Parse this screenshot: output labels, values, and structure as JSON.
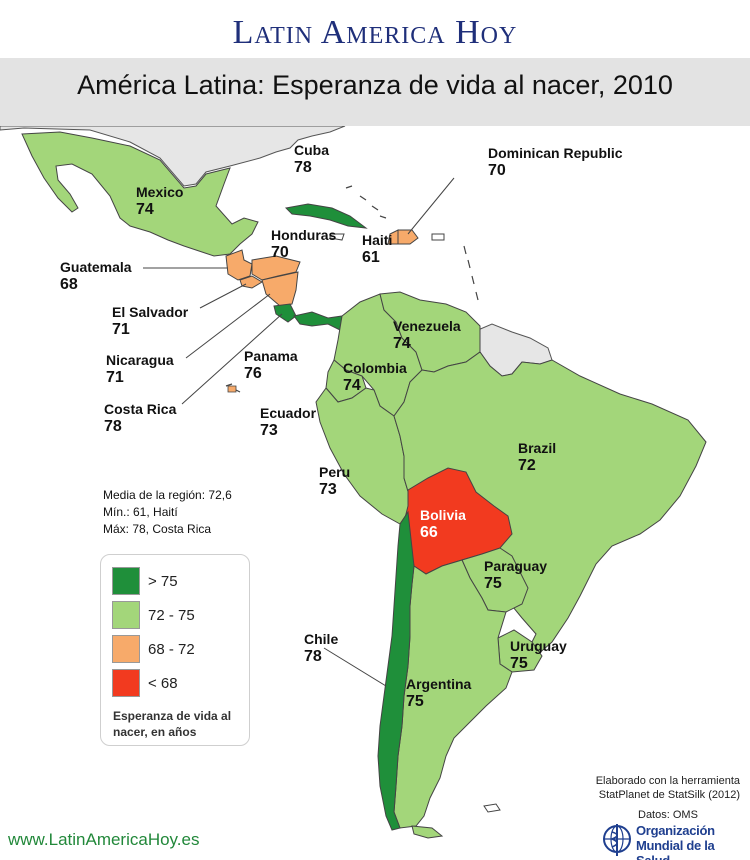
{
  "site": {
    "title": "Latin America Hoy",
    "url": "www.LatinAmericaHoy.es"
  },
  "map_title": "América Latina: Esperanza de vida al nacer, 2010",
  "colors": {
    "gt75": "#1f8f3a",
    "r72_75": "#a3d67a",
    "r68_72": "#f7aa6a",
    "lt68": "#f23a1f",
    "nodata": "#e6e6e6",
    "border": "#444444",
    "title": "#1f2f7a"
  },
  "countries": {
    "mexico": {
      "name": "Mexico",
      "value": "74"
    },
    "cuba": {
      "name": "Cuba",
      "value": "78"
    },
    "dominican_republic": {
      "name": "Dominican Republic",
      "value": "70"
    },
    "honduras": {
      "name": "Honduras",
      "value": "70"
    },
    "haiti": {
      "name": "Haiti",
      "value": "61"
    },
    "guatemala": {
      "name": "Guatemala",
      "value": "68"
    },
    "el_salvador": {
      "name": "El Salvador",
      "value": "71"
    },
    "nicaragua": {
      "name": "Nicaragua",
      "value": "71"
    },
    "panama": {
      "name": "Panama",
      "value": "76"
    },
    "costa_rica": {
      "name": "Costa Rica",
      "value": "78"
    },
    "venezuela": {
      "name": "Venezuela",
      "value": "74"
    },
    "colombia": {
      "name": "Colombia",
      "value": "74"
    },
    "ecuador": {
      "name": "Ecuador",
      "value": "73"
    },
    "brazil": {
      "name": "Brazil",
      "value": "72"
    },
    "peru": {
      "name": "Peru",
      "value": "73"
    },
    "bolivia": {
      "name": "Bolivia",
      "value": "66"
    },
    "paraguay": {
      "name": "Paraguay",
      "value": "75"
    },
    "chile": {
      "name": "Chile",
      "value": "78"
    },
    "uruguay": {
      "name": "Uruguay",
      "value": "75"
    },
    "argentina": {
      "name": "Argentina",
      "value": "75"
    }
  },
  "stats": {
    "mean": "Media de la región: 72,6",
    "min": "Mín.: 61, Haití",
    "max": "Máx: 78, Costa Rica"
  },
  "legend": {
    "items": [
      {
        "label": "> 75",
        "color": "#1f8f3a"
      },
      {
        "label": "72 - 75",
        "color": "#a3d67a"
      },
      {
        "label": "68 - 72",
        "color": "#f7aa6a"
      },
      {
        "label": "< 68",
        "color": "#f23a1f"
      }
    ],
    "caption": "Esperanza de vida al nacer, en años"
  },
  "credits": {
    "line1": "Elaborado con la herramienta",
    "line2": "StatPlanet de StatSilk (2012)",
    "data": "Datos: OMS"
  },
  "who": {
    "line1": "Organización",
    "line2": "Mundial de la Salud"
  }
}
